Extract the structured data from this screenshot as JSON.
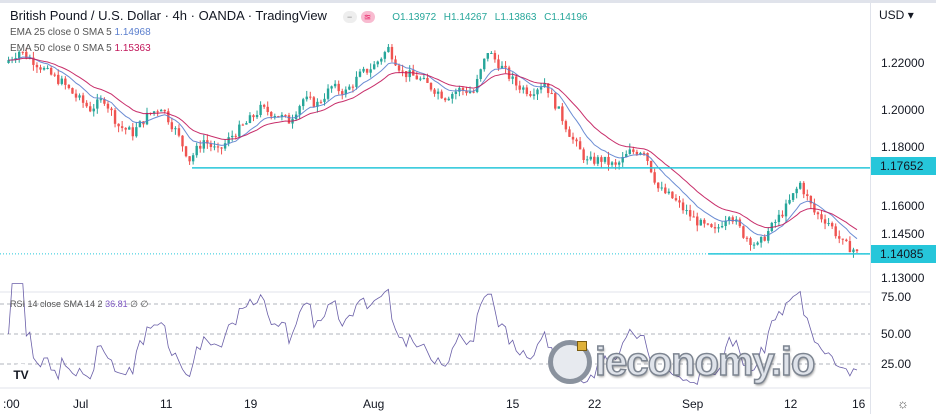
{
  "header": {
    "title": "British Pound / U.S. Dollar · 4h · OANDA · TradingView",
    "ohlc": {
      "open": "O1.13972",
      "high": "H1.14267",
      "low": "L1.13863",
      "close": "C1.14196"
    },
    "indicators": [
      {
        "label": "EMA 25 close 0 SMA 5",
        "value": "1.14968",
        "color": "#5b7fce"
      },
      {
        "label": "EMA 50 close 0 SMA 5",
        "value": "1.15363",
        "color": "#c2185b"
      }
    ],
    "rsi": {
      "label": "RSI 14 close SMA 14 2",
      "value": "36.81",
      "extra": "∅ ∅",
      "color": "#7e57c2"
    }
  },
  "axis": {
    "currency": "USD",
    "price_ticks": [
      "1.22000",
      "1.20000",
      "1.18000",
      "1.16000",
      "1.14500",
      "1.13000"
    ],
    "rsi_ticks": [
      "75.00",
      "50.00",
      "25.00"
    ],
    "time_ticks": [
      ":00",
      "Jul",
      "11",
      "19",
      "Aug",
      "15",
      "22",
      "Sep",
      "12",
      "16"
    ]
  },
  "levels": [
    {
      "price": 1.17652,
      "label": "1.17652",
      "color": "#26c6da"
    },
    {
      "price": 1.14085,
      "label": "1.14085",
      "color": "#26c6da"
    }
  ],
  "watermark": "ieconomy.io",
  "tv_logo": "TV",
  "chart_data": {
    "type": "candlestick",
    "symbol": "GBPUSD",
    "interval": "4h",
    "ylim": [
      1.13,
      1.23
    ],
    "up_color": "#26a69a",
    "down_color": "#ef5350",
    "closes": [
      1.22,
      1.225,
      1.221,
      1.216,
      1.212,
      1.206,
      1.201,
      1.205,
      1.194,
      1.191,
      1.198,
      1.202,
      1.192,
      1.18,
      1.188,
      1.183,
      1.19,
      1.195,
      1.201,
      1.199,
      1.196,
      1.205,
      1.203,
      1.21,
      1.208,
      1.215,
      1.219,
      1.226,
      1.216,
      1.214,
      1.21,
      1.206,
      1.209,
      1.208,
      1.225,
      1.218,
      1.211,
      1.208,
      1.212,
      1.2,
      1.188,
      1.179,
      1.18,
      1.177,
      1.183,
      1.184,
      1.168,
      1.164,
      1.158,
      1.153,
      1.15,
      1.158,
      1.149,
      1.144,
      1.152,
      1.16,
      1.17,
      1.158,
      1.154,
      1.145,
      1.142
    ],
    "ema_periods": [
      25,
      50
    ],
    "rsi_levels": [
      75,
      50,
      25
    ]
  }
}
